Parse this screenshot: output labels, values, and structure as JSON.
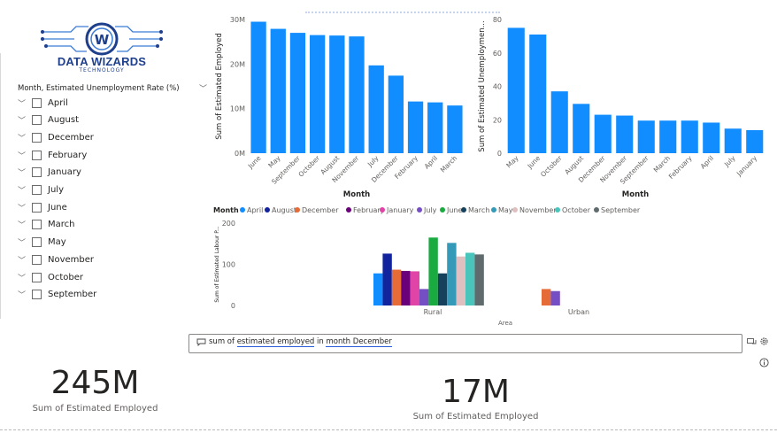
{
  "logo": {
    "title": "DATA WIZARDS",
    "subtitle": "TECHNOLOGY",
    "letter": "W"
  },
  "slicer": {
    "header": "Month, Estimated Unemployment Rate (%)",
    "items": [
      "April",
      "August",
      "December",
      "February",
      "January",
      "July",
      "June",
      "March",
      "May",
      "November",
      "October",
      "September"
    ]
  },
  "chart_employed": {
    "type": "bar",
    "ylabel": "Sum of Estimated Employed",
    "xlabel": "Month",
    "categories": [
      "June",
      "May",
      "September",
      "October",
      "August",
      "November",
      "July",
      "December",
      "February",
      "April",
      "March"
    ],
    "values": [
      29.5,
      27.9,
      27.0,
      26.5,
      26.4,
      26.2,
      19.7,
      17.4,
      11.6,
      11.4,
      10.7
    ],
    "ylim": [
      0,
      30
    ],
    "yticks": [
      "0M",
      "10M",
      "20M",
      "30M"
    ],
    "color": "#118DFF"
  },
  "chart_unemployment": {
    "type": "bar",
    "ylabel": "Sum of Estimated Unemploymen...",
    "xlabel": "Month",
    "categories": [
      "May",
      "June",
      "October",
      "August",
      "December",
      "November",
      "September",
      "March",
      "February",
      "April",
      "July",
      "January"
    ],
    "values": [
      75,
      71,
      37,
      29.5,
      23,
      22.5,
      19.5,
      19.5,
      19.5,
      18.3,
      14.7,
      13.8
    ],
    "ylim": [
      0,
      80
    ],
    "yticks": [
      "0",
      "20",
      "40",
      "60",
      "80"
    ],
    "color": "#118DFF"
  },
  "chart_area": {
    "type": "bar",
    "ylabel": "Sum of Estimated Labour P...",
    "xlabel": "Area",
    "legend_title": "Month",
    "categories": [
      "Rural",
      "Urban"
    ],
    "yticks": [
      "0",
      "100",
      "200"
    ],
    "ylim": [
      0,
      200
    ],
    "series": [
      {
        "name": "April",
        "color": "#118DFF",
        "values": [
          78,
          0
        ]
      },
      {
        "name": "August",
        "color": "#12239E",
        "values": [
          126,
          0
        ]
      },
      {
        "name": "December",
        "color": "#E66C37",
        "values": [
          87,
          40
        ]
      },
      {
        "name": "February",
        "color": "#6B007B",
        "values": [
          84,
          0
        ]
      },
      {
        "name": "January",
        "color": "#E044A7",
        "values": [
          83,
          0
        ]
      },
      {
        "name": "July",
        "color": "#744EC2",
        "values": [
          40,
          35
        ]
      },
      {
        "name": "June",
        "color": "#1AAB40",
        "values": [
          165,
          0
        ]
      },
      {
        "name": "March",
        "color": "#15415C",
        "values": [
          78,
          0
        ]
      },
      {
        "name": "May",
        "color": "#3599B8",
        "values": [
          152,
          0
        ]
      },
      {
        "name": "November",
        "color": "#DFBFBF",
        "values": [
          119,
          0
        ]
      },
      {
        "name": "October",
        "color": "#4AC5BB",
        "values": [
          128,
          0
        ]
      },
      {
        "name": "September",
        "color": "#5F6B6D",
        "values": [
          124,
          0
        ]
      }
    ]
  },
  "qa": {
    "parts": [
      "sum of ",
      "estimated employed",
      " in ",
      "month December"
    ]
  },
  "cards": {
    "left": {
      "value": "245M",
      "label": "Sum of Estimated Employed"
    },
    "right": {
      "value": "17M",
      "label": "Sum of Estimated Employed"
    }
  }
}
